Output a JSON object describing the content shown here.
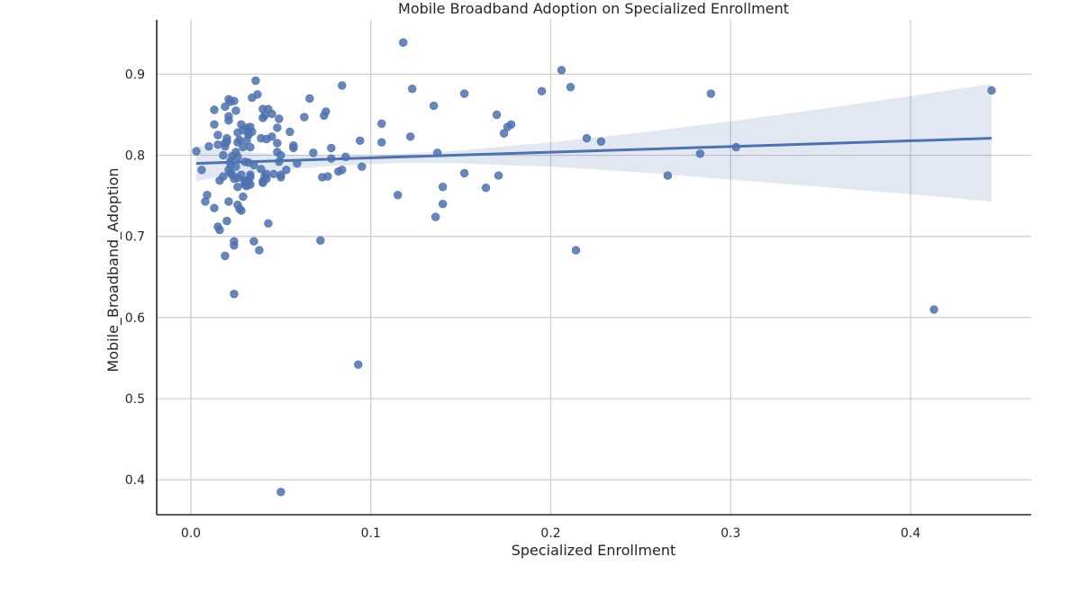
{
  "chart_data": {
    "type": "scatter",
    "title": "Mobile Broadband Adoption on Specialized Enrollment",
    "xlabel": "Specialized Enrollment",
    "ylabel": "Mobile_Broadband_Adoption",
    "xlim": [
      -0.019,
      0.467
    ],
    "ylim": [
      0.357,
      0.967
    ],
    "x_ticks": [
      0.0,
      0.1,
      0.2,
      0.3,
      0.4
    ],
    "x_tick_labels": [
      "0.0",
      "0.1",
      "0.2",
      "0.3",
      "0.4"
    ],
    "y_ticks": [
      0.4,
      0.5,
      0.6,
      0.7,
      0.8,
      0.9
    ],
    "y_tick_labels": [
      "0.4",
      "0.5",
      "0.6",
      "0.7",
      "0.8",
      "0.9"
    ],
    "grid": true,
    "point_color": "#4c72b0",
    "regression": {
      "x": [
        0.003,
        0.445
      ],
      "y": [
        0.79,
        0.821
      ],
      "ci_color": "#4c72b0",
      "ci_opacity": 0.16,
      "ci_x": [
        0.003,
        0.02,
        0.05,
        0.08,
        0.1,
        0.12,
        0.15,
        0.2,
        0.25,
        0.3,
        0.35,
        0.4,
        0.445
      ],
      "ci_upper": [
        0.812,
        0.806,
        0.801,
        0.799,
        0.8,
        0.802,
        0.806,
        0.816,
        0.828,
        0.842,
        0.857,
        0.873,
        0.888
      ],
      "ci_lower": [
        0.768,
        0.775,
        0.782,
        0.787,
        0.789,
        0.791,
        0.79,
        0.786,
        0.779,
        0.77,
        0.761,
        0.752,
        0.743
      ]
    },
    "points": [
      [
        0.003,
        0.805
      ],
      [
        0.006,
        0.782
      ],
      [
        0.008,
        0.743
      ],
      [
        0.009,
        0.751
      ],
      [
        0.01,
        0.811
      ],
      [
        0.013,
        0.735
      ],
      [
        0.013,
        0.838
      ],
      [
        0.013,
        0.856
      ],
      [
        0.015,
        0.825
      ],
      [
        0.015,
        0.813
      ],
      [
        0.015,
        0.712
      ],
      [
        0.016,
        0.708
      ],
      [
        0.016,
        0.769
      ],
      [
        0.018,
        0.774
      ],
      [
        0.018,
        0.8
      ],
      [
        0.019,
        0.676
      ],
      [
        0.019,
        0.86
      ],
      [
        0.019,
        0.815
      ],
      [
        0.019,
        0.811
      ],
      [
        0.02,
        0.821
      ],
      [
        0.02,
        0.719
      ],
      [
        0.02,
        0.817
      ],
      [
        0.021,
        0.782
      ],
      [
        0.021,
        0.743
      ],
      [
        0.021,
        0.869
      ],
      [
        0.021,
        0.848
      ],
      [
        0.021,
        0.843
      ],
      [
        0.022,
        0.793
      ],
      [
        0.022,
        0.866
      ],
      [
        0.022,
        0.789
      ],
      [
        0.022,
        0.778
      ],
      [
        0.023,
        0.799
      ],
      [
        0.023,
        0.776
      ],
      [
        0.024,
        0.771
      ],
      [
        0.024,
        0.689
      ],
      [
        0.024,
        0.694
      ],
      [
        0.024,
        0.629
      ],
      [
        0.024,
        0.867
      ],
      [
        0.025,
        0.855
      ],
      [
        0.025,
        0.786
      ],
      [
        0.025,
        0.804
      ],
      [
        0.026,
        0.772
      ],
      [
        0.026,
        0.761
      ],
      [
        0.026,
        0.739
      ],
      [
        0.026,
        0.816
      ],
      [
        0.026,
        0.828
      ],
      [
        0.026,
        0.798
      ],
      [
        0.027,
        0.734
      ],
      [
        0.027,
        0.819
      ],
      [
        0.028,
        0.838
      ],
      [
        0.028,
        0.732
      ],
      [
        0.028,
        0.776
      ],
      [
        0.029,
        0.749
      ],
      [
        0.029,
        0.81
      ],
      [
        0.029,
        0.831
      ],
      [
        0.03,
        0.792
      ],
      [
        0.03,
        0.767
      ],
      [
        0.03,
        0.769
      ],
      [
        0.03,
        0.764
      ],
      [
        0.031,
        0.818
      ],
      [
        0.031,
        0.834
      ],
      [
        0.031,
        0.762
      ],
      [
        0.032,
        0.791
      ],
      [
        0.032,
        0.827
      ],
      [
        0.032,
        0.825
      ],
      [
        0.032,
        0.767
      ],
      [
        0.033,
        0.776
      ],
      [
        0.033,
        0.835
      ],
      [
        0.033,
        0.773
      ],
      [
        0.033,
        0.764
      ],
      [
        0.033,
        0.81
      ],
      [
        0.034,
        0.871
      ],
      [
        0.034,
        0.829
      ],
      [
        0.035,
        0.788
      ],
      [
        0.035,
        0.694
      ],
      [
        0.036,
        0.892
      ],
      [
        0.037,
        0.875
      ],
      [
        0.038,
        0.683
      ],
      [
        0.039,
        0.783
      ],
      [
        0.039,
        0.821
      ],
      [
        0.04,
        0.857
      ],
      [
        0.04,
        0.846
      ],
      [
        0.04,
        0.768
      ],
      [
        0.04,
        0.766
      ],
      [
        0.041,
        0.849
      ],
      [
        0.041,
        0.774
      ],
      [
        0.042,
        0.777
      ],
      [
        0.042,
        0.771
      ],
      [
        0.042,
        0.82
      ],
      [
        0.043,
        0.716
      ],
      [
        0.043,
        0.857
      ],
      [
        0.045,
        0.851
      ],
      [
        0.045,
        0.823
      ],
      [
        0.046,
        0.777
      ],
      [
        0.048,
        0.834
      ],
      [
        0.048,
        0.815
      ],
      [
        0.048,
        0.804
      ],
      [
        0.049,
        0.845
      ],
      [
        0.049,
        0.792
      ],
      [
        0.05,
        0.773
      ],
      [
        0.05,
        0.776
      ],
      [
        0.05,
        0.8
      ],
      [
        0.05,
        0.385
      ],
      [
        0.053,
        0.782
      ],
      [
        0.055,
        0.829
      ],
      [
        0.057,
        0.812
      ],
      [
        0.057,
        0.809
      ],
      [
        0.059,
        0.79
      ],
      [
        0.063,
        0.847
      ],
      [
        0.066,
        0.87
      ],
      [
        0.068,
        0.803
      ],
      [
        0.072,
        0.695
      ],
      [
        0.073,
        0.773
      ],
      [
        0.074,
        0.849
      ],
      [
        0.075,
        0.854
      ],
      [
        0.076,
        0.774
      ],
      [
        0.078,
        0.796
      ],
      [
        0.078,
        0.809
      ],
      [
        0.082,
        0.78
      ],
      [
        0.084,
        0.886
      ],
      [
        0.084,
        0.782
      ],
      [
        0.086,
        0.798
      ],
      [
        0.093,
        0.542
      ],
      [
        0.094,
        0.818
      ],
      [
        0.095,
        0.786
      ],
      [
        0.106,
        0.839
      ],
      [
        0.106,
        0.816
      ],
      [
        0.115,
        0.751
      ],
      [
        0.118,
        0.939
      ],
      [
        0.122,
        0.823
      ],
      [
        0.123,
        0.882
      ],
      [
        0.135,
        0.861
      ],
      [
        0.136,
        0.724
      ],
      [
        0.137,
        0.803
      ],
      [
        0.14,
        0.761
      ],
      [
        0.14,
        0.74
      ],
      [
        0.152,
        0.876
      ],
      [
        0.152,
        0.778
      ],
      [
        0.164,
        0.76
      ],
      [
        0.17,
        0.85
      ],
      [
        0.171,
        0.775
      ],
      [
        0.174,
        0.827
      ],
      [
        0.176,
        0.835
      ],
      [
        0.178,
        0.838
      ],
      [
        0.195,
        0.879
      ],
      [
        0.206,
        0.905
      ],
      [
        0.211,
        0.884
      ],
      [
        0.214,
        0.683
      ],
      [
        0.22,
        0.821
      ],
      [
        0.228,
        0.817
      ],
      [
        0.265,
        0.775
      ],
      [
        0.283,
        0.802
      ],
      [
        0.289,
        0.876
      ],
      [
        0.303,
        0.81
      ],
      [
        0.413,
        0.61
      ],
      [
        0.445,
        0.88
      ]
    ]
  }
}
